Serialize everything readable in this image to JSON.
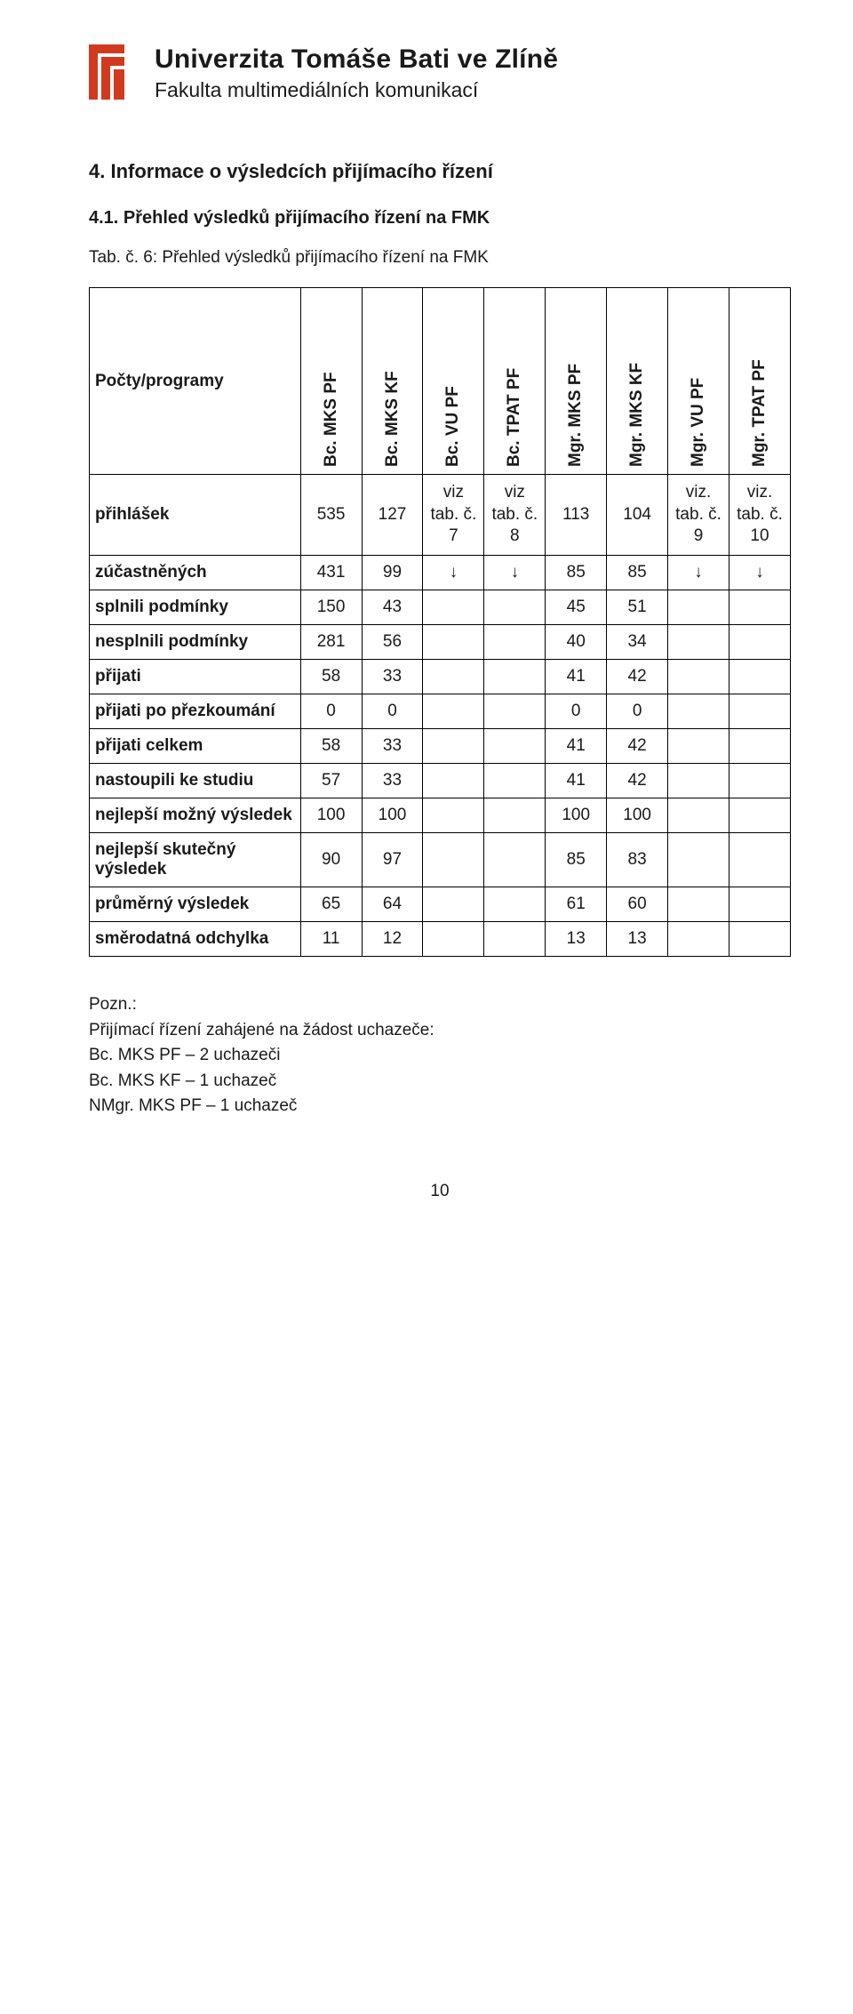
{
  "header": {
    "university": "Univerzita Tomáše Bati ve Zlíně",
    "faculty": "Fakulta multimediálních komunikací",
    "logo_color": "#d13a1f"
  },
  "section_title": "4. Informace o výsledcích přijímacího řízení",
  "subsection_title": "4.1. Přehled výsledků přijímacího řízení na FMK",
  "table_caption": "Tab. č. 6: Přehled výsledků přijímacího řízení na FMK",
  "columns": {
    "row_header": "Počty/programy",
    "c1": "Bc. MKS PF",
    "c2": "Bc. MKS KF",
    "c3": "Bc. VU PF",
    "c4": "Bc. TPAT PF",
    "c5": "Mgr. MKS PF",
    "c6": "Mgr. MKS KF",
    "c7": "Mgr. VU PF",
    "c8": "Mgr. TPAT PF"
  },
  "viz": {
    "c3": "viz tab. č. 7",
    "c4": "viz tab. č. 8",
    "c7": "viz. tab. č. 9",
    "c8": "viz. tab. č. 10"
  },
  "rows": {
    "r1": {
      "label": "přihlášek",
      "v": [
        "535",
        "127",
        "viz",
        "viz",
        "113",
        "104",
        "viz",
        "viz"
      ]
    },
    "r2": {
      "label": "zúčastněných",
      "v": [
        "431",
        "99",
        "↓",
        "↓",
        "85",
        "85",
        "↓",
        "↓"
      ]
    },
    "r3": {
      "label": "splnili podmínky",
      "v": [
        "150",
        "43",
        "",
        "",
        "45",
        "51",
        "",
        ""
      ]
    },
    "r4": {
      "label": "nesplnili podmínky",
      "v": [
        "281",
        "56",
        "",
        "",
        "40",
        "34",
        "",
        ""
      ]
    },
    "r5": {
      "label": "přijati",
      "v": [
        "58",
        "33",
        "",
        "",
        "41",
        "42",
        "",
        ""
      ]
    },
    "r6": {
      "label": "přijati po přezkoumání",
      "v": [
        "0",
        "0",
        "",
        "",
        "0",
        "0",
        "",
        ""
      ]
    },
    "r7": {
      "label": "přijati celkem",
      "v": [
        "58",
        "33",
        "",
        "",
        "41",
        "42",
        "",
        ""
      ]
    },
    "r8": {
      "label": "nastoupili ke studiu",
      "v": [
        "57",
        "33",
        "",
        "",
        "41",
        "42",
        "",
        ""
      ]
    },
    "r9": {
      "label": "nejlepší možný výsledek",
      "v": [
        "100",
        "100",
        "",
        "",
        "100",
        "100",
        "",
        ""
      ]
    },
    "r10": {
      "label": "nejlepší skutečný výsledek",
      "v": [
        "90",
        "97",
        "",
        "",
        "85",
        "83",
        "",
        ""
      ]
    },
    "r11": {
      "label": "průměrný výsledek",
      "v": [
        "65",
        "64",
        "",
        "",
        "61",
        "60",
        "",
        ""
      ]
    },
    "r12": {
      "label": "směrodatná odchylka",
      "v": [
        "11",
        "12",
        "",
        "",
        "13",
        "13",
        "",
        ""
      ]
    }
  },
  "note": {
    "title": "Pozn.:",
    "line1": "Přijímací řízení zahájené na žádost uchazeče:",
    "line2": "Bc. MKS PF – 2 uchazeči",
    "line3": "Bc. MKS KF – 1 uchazeč",
    "line4": "NMgr. MKS PF – 1 uchazeč"
  },
  "page_number": "10"
}
